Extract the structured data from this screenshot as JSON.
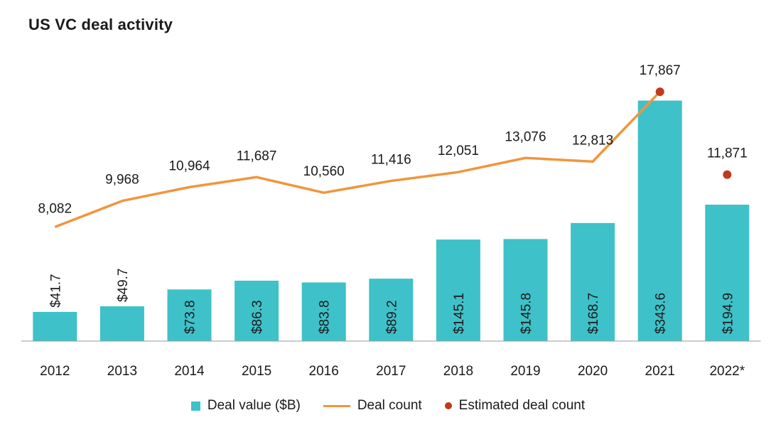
{
  "title": "US VC deal activity",
  "colors": {
    "bar": "#3fc1c9",
    "line": "#f0963c",
    "dot": "#c0391b",
    "axis": "#999999",
    "text": "#1a1a1a",
    "bar_label": "#1a1a1a"
  },
  "legend": {
    "deal_value": "Deal value ($B)",
    "deal_count": "Deal count",
    "estimated": "Estimated deal count"
  },
  "chart_data": {
    "type": "bar",
    "categories": [
      "2012",
      "2013",
      "2014",
      "2015",
      "2016",
      "2017",
      "2018",
      "2019",
      "2020",
      "2021",
      "2022*"
    ],
    "series": [
      {
        "name": "Deal value ($B)",
        "type": "bar",
        "values": [
          41.7,
          49.7,
          73.8,
          86.3,
          83.8,
          89.2,
          145.1,
          145.8,
          168.7,
          343.6,
          194.9
        ],
        "labels": [
          "$41.7",
          "$49.7",
          "$73.8",
          "$86.3",
          "$83.8",
          "$89.2",
          "$145.1",
          "$145.8",
          "$168.7",
          "$343.6",
          "$194.9"
        ]
      },
      {
        "name": "Deal count",
        "type": "line",
        "values": [
          8082,
          9968,
          10964,
          11687,
          10560,
          11416,
          12051,
          13076,
          12813,
          17867,
          null
        ],
        "labels": [
          "8,082",
          "9,968",
          "10,964",
          "11,687",
          "10,560",
          "11,416",
          "12,051",
          "13,076",
          "12,813",
          "17,867",
          null
        ]
      },
      {
        "name": "Estimated deal count",
        "type": "scatter",
        "values": [
          null,
          null,
          null,
          null,
          null,
          null,
          null,
          null,
          null,
          17867,
          11871
        ],
        "labels": [
          null,
          null,
          null,
          null,
          null,
          null,
          null,
          null,
          null,
          null,
          "11,871"
        ]
      }
    ],
    "grid": false,
    "legend_position": "bottom"
  }
}
